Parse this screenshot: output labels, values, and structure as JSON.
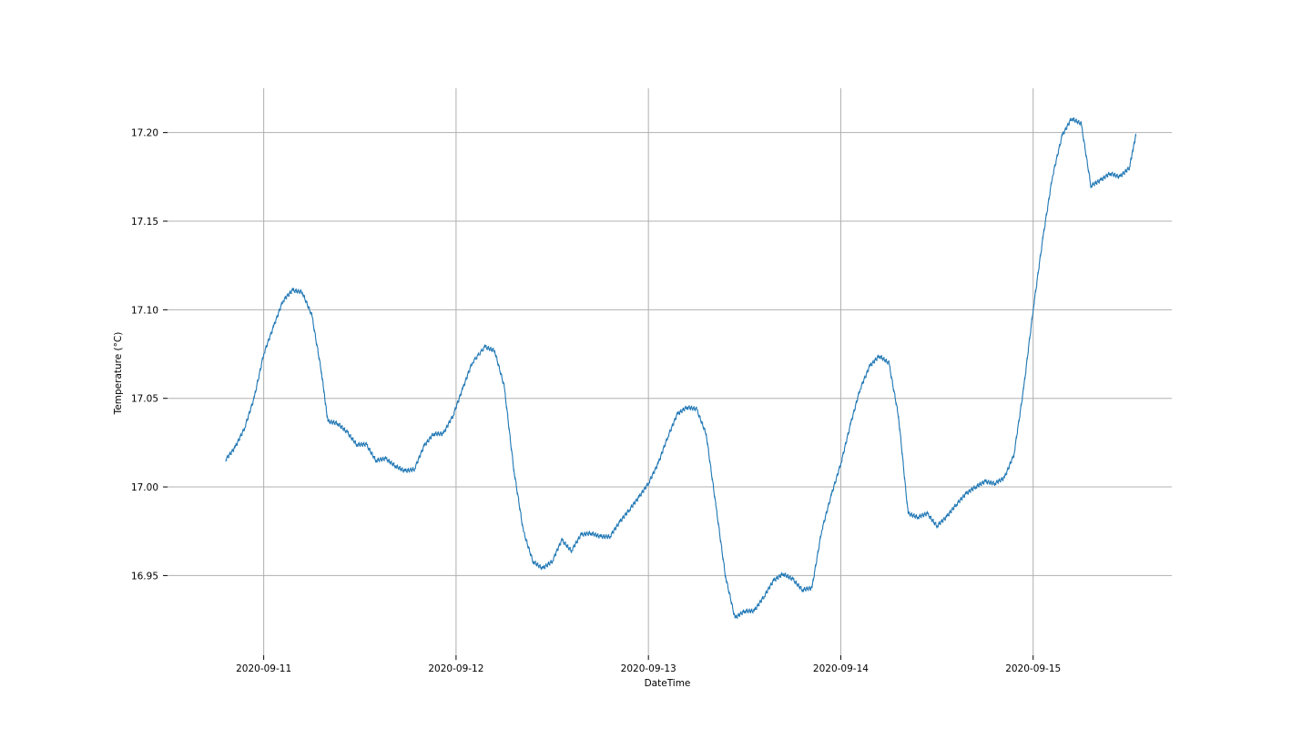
{
  "chart_data": {
    "type": "line",
    "title": "",
    "xlabel": "DateTime",
    "ylabel": "Temperature (°C)",
    "x_ticks": [
      "2020-09-11",
      "2020-09-12",
      "2020-09-13",
      "2020-09-14",
      "2020-09-15"
    ],
    "y_ticks": [
      "16.95",
      "17.00",
      "17.05",
      "17.10",
      "17.15",
      "17.20"
    ],
    "ylim": [
      16.905,
      17.225
    ],
    "xlim": [
      "2020-09-10T12:00",
      "2020-09-15T17:18"
    ],
    "grid": true,
    "legend": "none",
    "series": [
      {
        "color": "#1f77b4",
        "points": [
          [
            "2020-09-10T19:12",
            17.015
          ],
          [
            "2020-09-10T20:24",
            17.022
          ],
          [
            "2020-09-10T21:36",
            17.033
          ],
          [
            "2020-09-10T22:48",
            17.05
          ],
          [
            "2020-09-11T00:00",
            17.075
          ],
          [
            "2020-09-11T01:12",
            17.09
          ],
          [
            "2020-09-11T02:24",
            17.105
          ],
          [
            "2020-09-11T03:36",
            17.111
          ],
          [
            "2020-09-11T04:48",
            17.11
          ],
          [
            "2020-09-11T06:00",
            17.097
          ],
          [
            "2020-09-11T07:12",
            17.065
          ],
          [
            "2020-09-11T08:00",
            17.037
          ],
          [
            "2020-09-11T09:12",
            17.036
          ],
          [
            "2020-09-11T10:24",
            17.031
          ],
          [
            "2020-09-11T11:36",
            17.024
          ],
          [
            "2020-09-11T12:48",
            17.024
          ],
          [
            "2020-09-11T14:00",
            17.015
          ],
          [
            "2020-09-11T15:12",
            17.016
          ],
          [
            "2020-09-11T16:24",
            17.012
          ],
          [
            "2020-09-11T17:36",
            17.009
          ],
          [
            "2020-09-11T18:48",
            17.01
          ],
          [
            "2020-09-11T20:00",
            17.023
          ],
          [
            "2020-09-11T21:12",
            17.03
          ],
          [
            "2020-09-11T22:24",
            17.03
          ],
          [
            "2020-09-11T23:36",
            17.04
          ],
          [
            "2020-09-12T00:48",
            17.055
          ],
          [
            "2020-09-12T02:00",
            17.07
          ],
          [
            "2020-09-12T03:36",
            17.079
          ],
          [
            "2020-09-12T04:48",
            17.077
          ],
          [
            "2020-09-12T06:00",
            17.057
          ],
          [
            "2020-09-12T07:12",
            17.01
          ],
          [
            "2020-09-12T08:24",
            16.975
          ],
          [
            "2020-09-12T09:36",
            16.958
          ],
          [
            "2020-09-12T10:48",
            16.954
          ],
          [
            "2020-09-12T12:00",
            16.958
          ],
          [
            "2020-09-12T13:12",
            16.97
          ],
          [
            "2020-09-12T14:24",
            16.964
          ],
          [
            "2020-09-12T15:36",
            16.973
          ],
          [
            "2020-09-12T16:48",
            16.974
          ],
          [
            "2020-09-12T18:00",
            16.972
          ],
          [
            "2020-09-12T19:12",
            16.972
          ],
          [
            "2020-09-12T20:24",
            16.98
          ],
          [
            "2020-09-12T21:36",
            16.987
          ],
          [
            "2020-09-12T22:48",
            16.994
          ],
          [
            "2020-09-13T00:00",
            17.002
          ],
          [
            "2020-09-13T01:12",
            17.013
          ],
          [
            "2020-09-13T02:24",
            17.028
          ],
          [
            "2020-09-13T03:36",
            17.041
          ],
          [
            "2020-09-13T04:48",
            17.045
          ],
          [
            "2020-09-13T06:00",
            17.044
          ],
          [
            "2020-09-13T07:12",
            17.03
          ],
          [
            "2020-09-13T08:24",
            16.99
          ],
          [
            "2020-09-13T09:36",
            16.95
          ],
          [
            "2020-09-13T10:48",
            16.926
          ],
          [
            "2020-09-13T12:00",
            16.93
          ],
          [
            "2020-09-13T13:12",
            16.93
          ],
          [
            "2020-09-13T14:24",
            16.938
          ],
          [
            "2020-09-13T15:36",
            16.947
          ],
          [
            "2020-09-13T16:48",
            16.951
          ],
          [
            "2020-09-13T18:00",
            16.948
          ],
          [
            "2020-09-13T19:12",
            16.942
          ],
          [
            "2020-09-13T20:24",
            16.943
          ],
          [
            "2020-09-13T21:36",
            16.975
          ],
          [
            "2020-09-13T22:48",
            16.995
          ],
          [
            "2020-09-14T00:00",
            17.013
          ],
          [
            "2020-09-14T01:12",
            17.035
          ],
          [
            "2020-09-14T02:24",
            17.055
          ],
          [
            "2020-09-14T03:36",
            17.068
          ],
          [
            "2020-09-14T04:48",
            17.074
          ],
          [
            "2020-09-14T06:00",
            17.07
          ],
          [
            "2020-09-14T07:12",
            17.04
          ],
          [
            "2020-09-14T08:24",
            16.985
          ],
          [
            "2020-09-14T09:36",
            16.983
          ],
          [
            "2020-09-14T10:48",
            16.985
          ],
          [
            "2020-09-14T12:00",
            16.978
          ],
          [
            "2020-09-14T13:12",
            16.983
          ],
          [
            "2020-09-14T14:24",
            16.99
          ],
          [
            "2020-09-14T15:36",
            16.996
          ],
          [
            "2020-09-14T16:48",
            17.0
          ],
          [
            "2020-09-14T18:00",
            17.003
          ],
          [
            "2020-09-14T19:12",
            17.002
          ],
          [
            "2020-09-14T20:24",
            17.005
          ],
          [
            "2020-09-14T21:36",
            17.018
          ],
          [
            "2020-09-14T22:48",
            17.055
          ],
          [
            "2020-09-15T00:00",
            17.1
          ],
          [
            "2020-09-15T01:12",
            17.14
          ],
          [
            "2020-09-15T02:24",
            17.175
          ],
          [
            "2020-09-15T03:36",
            17.198
          ],
          [
            "2020-09-15T04:48",
            17.208
          ],
          [
            "2020-09-15T06:00",
            17.205
          ],
          [
            "2020-09-15T07:12",
            17.17
          ],
          [
            "2020-09-15T08:24",
            17.173
          ],
          [
            "2020-09-15T09:36",
            17.177
          ],
          [
            "2020-09-15T10:48",
            17.175
          ],
          [
            "2020-09-15T12:00",
            17.18
          ],
          [
            "2020-09-15T12:48",
            17.198
          ]
        ]
      }
    ]
  }
}
